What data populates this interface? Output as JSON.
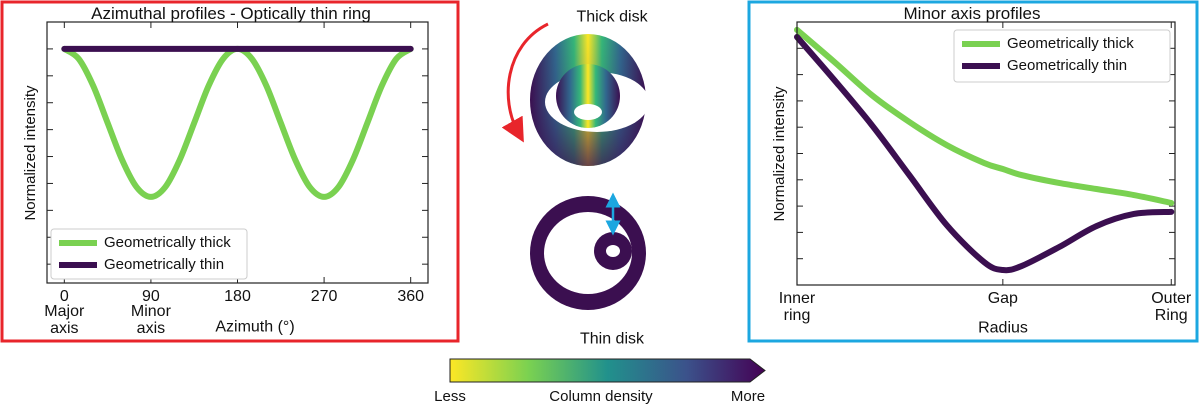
{
  "chart_data": [
    {
      "type": "line",
      "title": "Azimuthal profiles - Optically thin ring",
      "ylabel": "Normalized intensity",
      "xlabel": "Azimuth (°)",
      "x": [
        0,
        15,
        30,
        45,
        60,
        75,
        90,
        105,
        120,
        135,
        150,
        165,
        180,
        195,
        210,
        225,
        240,
        255,
        270,
        285,
        300,
        315,
        330,
        345,
        360
      ],
      "series": [
        {
          "name": "Geometrically thick",
          "color": "#7ad151",
          "values": [
            1,
            0.963,
            0.863,
            0.725,
            0.588,
            0.487,
            0.45,
            0.487,
            0.588,
            0.725,
            0.863,
            0.963,
            1,
            0.963,
            0.863,
            0.725,
            0.588,
            0.487,
            0.45,
            0.487,
            0.588,
            0.725,
            0.863,
            0.963,
            1
          ]
        },
        {
          "name": "Geometrically thin",
          "color": "#3b0f50",
          "values": [
            1,
            1,
            1,
            1,
            1,
            1,
            1,
            1,
            1,
            1,
            1,
            1,
            1,
            1,
            1,
            1,
            1,
            1,
            1,
            1,
            1,
            1,
            1,
            1,
            1
          ]
        }
      ],
      "xlim": [
        -18,
        378
      ],
      "xticks": [
        0,
        90,
        180,
        270,
        360
      ],
      "ylim": [
        0.13,
        1.1
      ],
      "yticks": [
        0.2,
        0.3,
        0.4,
        0.5,
        0.6,
        0.7,
        0.8,
        0.9,
        1.0
      ],
      "ytick_labels": false,
      "annotations": [
        {
          "text": "Major axis",
          "x": 0
        },
        {
          "text": "Minor axis",
          "x": 90
        }
      ],
      "legend": "lower left"
    },
    {
      "type": "line",
      "title": "Minor axis profiles",
      "ylabel": "Normalized intensity",
      "xlabel": "Radius",
      "x": [
        0,
        0.1,
        0.2,
        0.3,
        0.4,
        0.5,
        0.55,
        0.6,
        0.7,
        0.8,
        0.9,
        1
      ],
      "series": [
        {
          "name": "Geometrically thick",
          "color": "#7ad151",
          "values": [
            0.97,
            0.848,
            0.722,
            0.62,
            0.532,
            0.464,
            0.441,
            0.418,
            0.388,
            0.365,
            0.342,
            0.312
          ]
        },
        {
          "name": "Geometrically thin",
          "color": "#3b0f50",
          "values": [
            0.943,
            0.779,
            0.608,
            0.418,
            0.228,
            0.087,
            0.057,
            0.072,
            0.144,
            0.224,
            0.27,
            0.278
          ]
        }
      ],
      "xlim": [
        0,
        1.01
      ],
      "xticks": [
        {
          "value": 0,
          "label": "Inner ring"
        },
        {
          "value": 0.55,
          "label": "Gap"
        },
        {
          "value": 1,
          "label": "Outer Ring"
        }
      ],
      "ylim": [
        0,
        1
      ],
      "yticks": [
        0.1,
        0.2,
        0.3,
        0.4,
        0.5,
        0.6,
        0.7,
        0.8,
        0.9
      ],
      "ytick_labels": false,
      "legend": "upper right"
    }
  ],
  "diagram": {
    "thick_label": "Thick disk",
    "thin_label": "Thin disk",
    "colorbar": {
      "label": "Column density",
      "low": "Less",
      "high": "More"
    }
  }
}
